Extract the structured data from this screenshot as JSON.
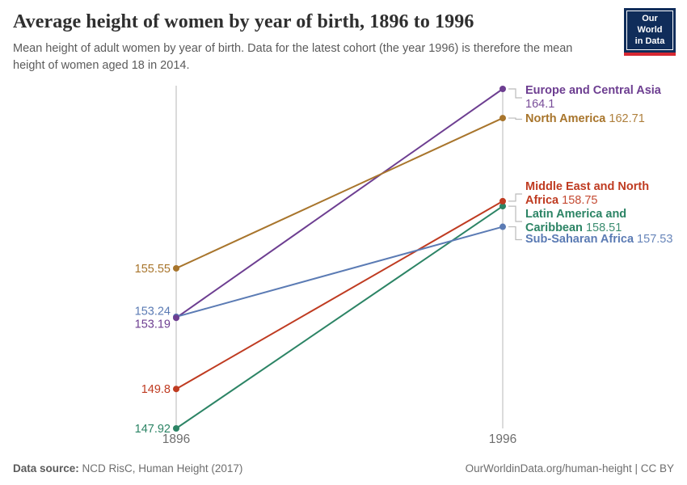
{
  "header": {
    "title": "Average height of women by year of birth, 1896 to 1996",
    "subtitle": "Mean height of adult women by year of birth. Data for the latest cohort (the year 1996) is therefore the mean height of women aged 18 in 2014."
  },
  "logo": {
    "line1": "Our World",
    "line2": "in Data",
    "bg_color": "#102D5A",
    "stripe_color": "#D62832"
  },
  "chart_data": {
    "type": "line",
    "subtype": "slope",
    "x": [
      1896,
      1996
    ],
    "x_tick_labels": [
      "1896",
      "1996"
    ],
    "ylim": [
      147.92,
      164.1
    ],
    "grid": false,
    "axis_color": "#CFCFCF",
    "tick_label_color": "#6E6E6E",
    "connector_color": "#BBBBBB",
    "series": [
      {
        "name": "Europe and Central Asia",
        "color": "#6D3E91",
        "values": [
          153.19,
          164.1
        ],
        "start_label": "153.19",
        "end_label": "164.1"
      },
      {
        "name": "North America",
        "color": "#A8752C",
        "values": [
          155.55,
          162.71
        ],
        "start_label": "155.55",
        "end_label": "162.71"
      },
      {
        "name": "Middle East and North Africa",
        "color": "#BF3B21",
        "values": [
          149.8,
          158.75
        ],
        "start_label": "149.8",
        "end_label": "158.75"
      },
      {
        "name": "Latin America and Caribbean",
        "color": "#2C8465",
        "values": [
          147.92,
          158.51
        ],
        "start_label": "147.92",
        "end_label": "158.51"
      },
      {
        "name": "Sub-Saharan Africa",
        "color": "#5B7BB4",
        "values": [
          153.24,
          157.53
        ],
        "start_label": "153.24",
        "end_label": "157.53"
      }
    ]
  },
  "footer": {
    "source_label": "Data source:",
    "source_value": "NCD RisC, Human Height (2017)",
    "credit": "OurWorldinData.org/human-height | CC BY"
  }
}
